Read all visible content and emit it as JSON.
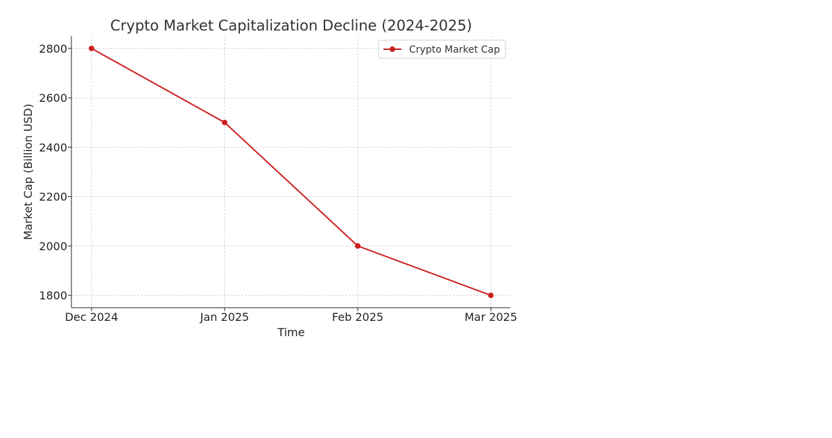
{
  "chart_data": {
    "type": "line",
    "title": "Crypto Market Capitalization Decline (2024-2025)",
    "xlabel": "Time",
    "ylabel": "Market Cap (Billion USD)",
    "categories": [
      "Dec 2024",
      "Jan 2025",
      "Feb 2025",
      "Mar 2025"
    ],
    "series": [
      {
        "name": "Crypto Market Cap",
        "values": [
          2800,
          2500,
          2000,
          1800
        ],
        "color": "#cc1f1f"
      }
    ],
    "ylim": [
      1750,
      2850
    ],
    "yticks": [
      1800,
      2000,
      2200,
      2400,
      2600,
      2800
    ],
    "grid": true,
    "legend_position": "top-right"
  }
}
